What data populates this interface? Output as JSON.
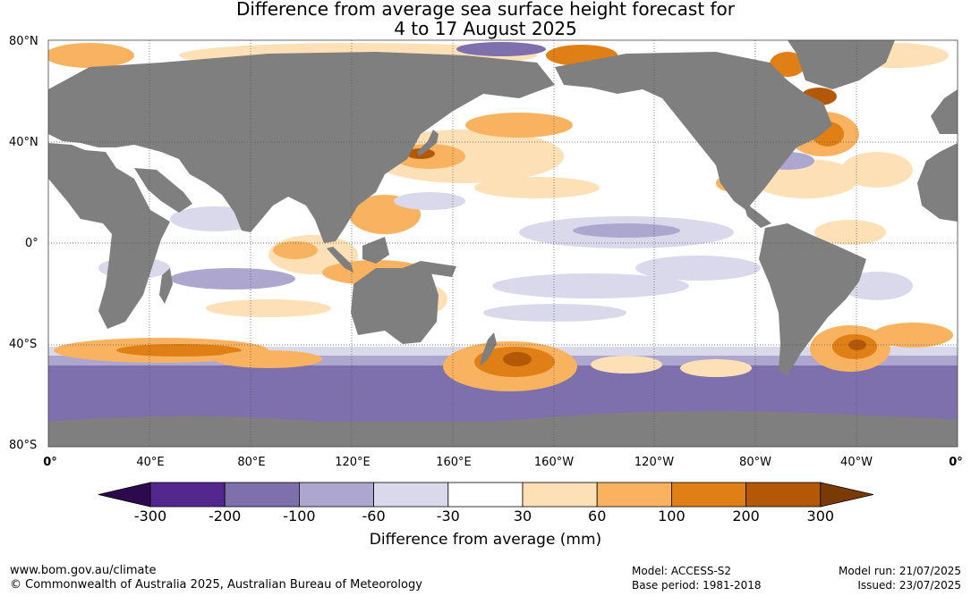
{
  "title_line1": "Difference from average sea surface height forecast for",
  "title_line2": "4 to 17 August 2025",
  "lat_labels": [
    "80°N",
    "40°N",
    "0°",
    "40°S",
    "80°S"
  ],
  "lon_labels": [
    "0°",
    "40°E",
    "80°E",
    "120°E",
    "160°E",
    "160°W",
    "120°W",
    "80°W",
    "40°W",
    "0°"
  ],
  "colorbar": {
    "ticks": [
      "-300",
      "-200",
      "-100",
      "-60",
      "-30",
      "30",
      "60",
      "100",
      "200",
      "300"
    ],
    "colors": [
      "#2d0a4e",
      "#54278f",
      "#7e6fad",
      "#ada7cf",
      "#d9d9eb",
      "#ffffff",
      "#fde0b6",
      "#f9b360",
      "#df7f16",
      "#b35806",
      "#7a3a05"
    ],
    "label": "Difference from average (mm)"
  },
  "map": {
    "land_color": "#7f7f7f",
    "ocean_color": "#ffffff",
    "lat_range": [
      -80,
      80
    ],
    "lon_range": [
      0,
      360
    ]
  },
  "footer": {
    "website": "www.bom.gov.au/climate",
    "copyright": "© Commonwealth of Australia 2025, Australian Bureau of Meteorology",
    "model": "Model: ACCESS-S2",
    "base_period": "Base period: 1981-2018",
    "model_run": "Model run: 21/07/2025",
    "issued": "Issued: 23/07/2025"
  }
}
